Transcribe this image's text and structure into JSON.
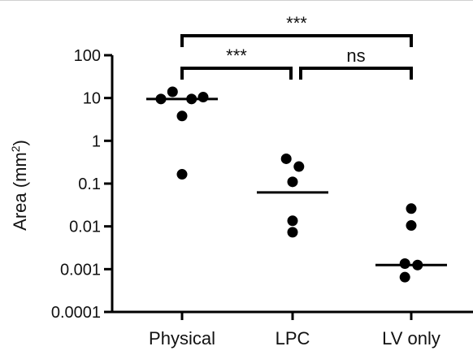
{
  "chart_data": {
    "type": "scatter",
    "title": "",
    "xlabel": "",
    "ylabel": "Area (mm",
    "ylabel_superscript": "2",
    "ylabel_close": ")",
    "yscale": "log",
    "ylim": [
      0.0001,
      100
    ],
    "grid": false,
    "yticks": [
      {
        "value": 0.0001,
        "label": "0.0001"
      },
      {
        "value": 0.001,
        "label": "0.001"
      },
      {
        "value": 0.01,
        "label": "0.01"
      },
      {
        "value": 0.1,
        "label": "0.1"
      },
      {
        "value": 1,
        "label": "1"
      },
      {
        "value": 10,
        "label": "10"
      },
      {
        "value": 100,
        "label": "100"
      }
    ],
    "categories": [
      "Physical",
      "LPC",
      "LV only"
    ],
    "groups": [
      {
        "category": "Physical",
        "mean": 9.5,
        "points": [
          {
            "v": 9.5,
            "j": -2
          },
          {
            "v": 14,
            "j": -0.9
          },
          {
            "v": 3.8,
            "j": 0
          },
          {
            "v": 9.5,
            "j": 0.9
          },
          {
            "v": 10.5,
            "j": 2
          },
          {
            "v": 0.165,
            "j": 0
          }
        ]
      },
      {
        "category": "LPC",
        "mean": 0.062,
        "points": [
          {
            "v": 0.38,
            "j": -0.6
          },
          {
            "v": 0.25,
            "j": 0.6
          },
          {
            "v": 0.11,
            "j": 0
          },
          {
            "v": 0.0135,
            "j": 0
          },
          {
            "v": 0.0073,
            "j": 0
          }
        ]
      },
      {
        "category": "LV only",
        "mean": 0.00125,
        "points": [
          {
            "v": 0.026,
            "j": 0
          },
          {
            "v": 0.0105,
            "j": 0
          },
          {
            "v": 0.00135,
            "j": -0.6
          },
          {
            "v": 0.00125,
            "j": 0.6
          },
          {
            "v": 0.00065,
            "j": -0.6
          }
        ]
      }
    ],
    "comparisons": [
      {
        "from": "Physical",
        "to": "LPC",
        "label": "***",
        "level": 0
      },
      {
        "from": "LPC",
        "to": "LV only",
        "label": "ns",
        "level": 0
      },
      {
        "from": "Physical",
        "to": "LV only",
        "label": "***",
        "level": 1
      }
    ],
    "marker_color": "#000000"
  }
}
